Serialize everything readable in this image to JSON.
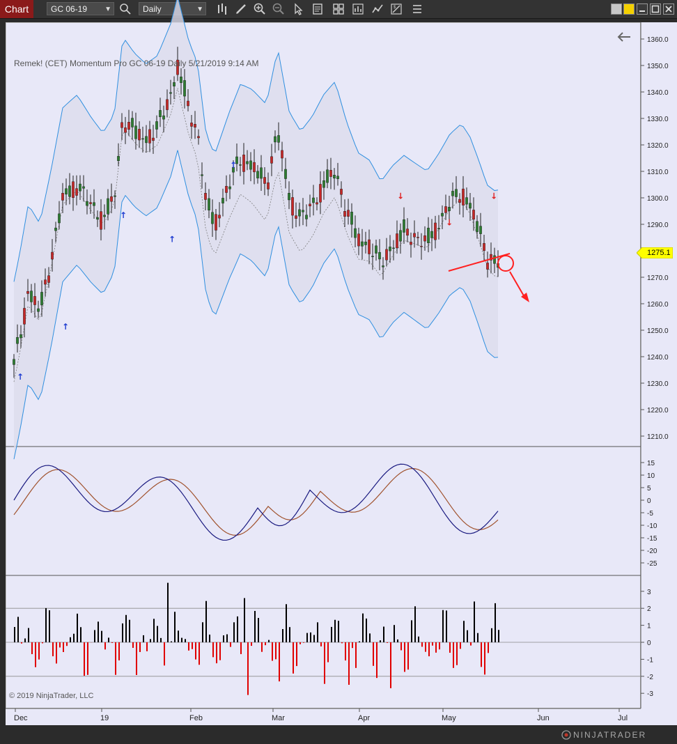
{
  "toolbar": {
    "tab_label": "Chart",
    "instrument": "GC 06-19",
    "interval": "Daily"
  },
  "chart": {
    "header": "Remek!  (CET) Momentum Pro  GC 06-19  Daily  5/21/2019 9:14 AM",
    "copyright": "© 2019 NinjaTrader, LLC",
    "price_tag": "1275.1",
    "price_ticks": [
      "1210.0",
      "1220.0",
      "1230.0",
      "1240.0",
      "1250.0",
      "1260.0",
      "1270.0",
      "1280.0",
      "1290.0",
      "1300.0",
      "1310.0",
      "1320.0",
      "1330.0",
      "1340.0",
      "1350.0",
      "1360.0"
    ],
    "osc_ticks": [
      "15",
      "10",
      "5",
      "0",
      "-5",
      "-10",
      "-15",
      "-20",
      "-25"
    ],
    "hist_ticks": [
      "3",
      "2",
      "1",
      "0",
      "-1",
      "-2",
      "-3"
    ],
    "x_ticks": [
      "Dec",
      "19",
      "Feb",
      "Mar",
      "Apr",
      "May",
      "Jun",
      "Jul"
    ],
    "brand": "NINJATRADER"
  },
  "colors": {
    "up_candle": "#2e7d32",
    "down_candle": "#c62828",
    "band_line": "#2f8fe0",
    "osc_fast": "#1a1a80",
    "osc_slow": "#a0522d",
    "hist_up": "#000000",
    "hist_down": "#e00000",
    "price_tag_bg": "#ffff00"
  }
}
